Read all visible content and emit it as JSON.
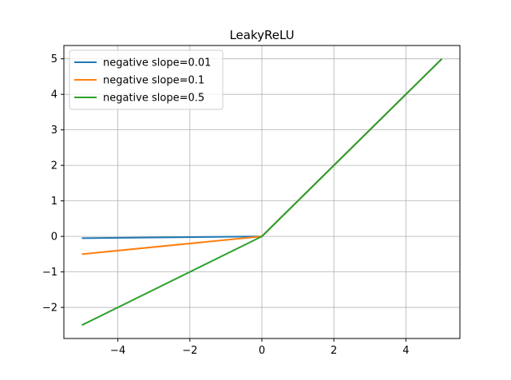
{
  "chart_data": {
    "type": "line",
    "title": "LeakyReLU",
    "xlabel": "",
    "ylabel": "",
    "xlim": [
      -5.5,
      5.5
    ],
    "ylim": [
      -2.875,
      5.375
    ],
    "x_ticks": [
      -4,
      -2,
      0,
      2,
      4
    ],
    "y_ticks": [
      -2,
      -1,
      0,
      1,
      2,
      3,
      4,
      5
    ],
    "x_tick_labels": [
      "−4",
      "−2",
      "0",
      "2",
      "4"
    ],
    "y_tick_labels": [
      "−2",
      "−1",
      "0",
      "1",
      "2",
      "3",
      "4",
      "5"
    ],
    "grid": true,
    "legend_position": "top-left",
    "series": [
      {
        "name": "negative slope=0.01",
        "color": "#1f77b4",
        "x": [
          -5,
          0,
          5
        ],
        "y": [
          -0.05,
          0,
          5
        ]
      },
      {
        "name": "negative slope=0.1",
        "color": "#ff7f0e",
        "x": [
          -5,
          0,
          5
        ],
        "y": [
          -0.5,
          0,
          5
        ]
      },
      {
        "name": "negative slope=0.5",
        "color": "#2ca02c",
        "x": [
          -5,
          0,
          5
        ],
        "y": [
          -2.5,
          0,
          5
        ]
      }
    ]
  }
}
